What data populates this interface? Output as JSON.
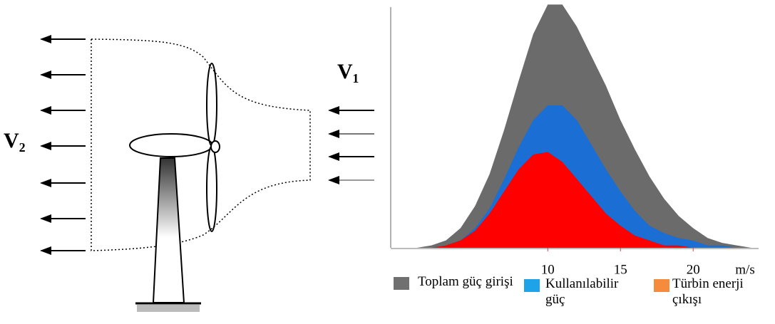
{
  "diagram": {
    "inflow_label": "V₁",
    "outflow_label": "V₂"
  },
  "chart_data": {
    "type": "area",
    "x": [
      0,
      1,
      2,
      3,
      4,
      5,
      6,
      7,
      8,
      9,
      10,
      11,
      12,
      13,
      14,
      15,
      16,
      17,
      18,
      19,
      20,
      21,
      22,
      23,
      24
    ],
    "series": [
      {
        "name": "Toplam güç girişi",
        "color": "#6b6b6b",
        "legend_color": "#707070",
        "values": [
          0,
          0,
          1,
          3,
          8,
          17,
          30,
          48,
          68,
          87,
          99,
          99,
          90,
          78,
          66,
          52,
          40,
          29,
          20,
          13,
          8,
          4,
          2,
          1,
          0
        ]
      },
      {
        "name": "Kullanılabilir güç",
        "color": "#1b6fd4",
        "legend_color": "#1ea2e8",
        "values": [
          0,
          0,
          0,
          1,
          3,
          8,
          16,
          28,
          41,
          52,
          58,
          58,
          52,
          42,
          32,
          23,
          15,
          9,
          6,
          4,
          3,
          1,
          1,
          0,
          0
        ]
      },
      {
        "name": "Türbin enerji çıkışı",
        "color": "#ff0000",
        "legend_color": "#f58b3c",
        "values": [
          0,
          0,
          0,
          1,
          3,
          7,
          14,
          23,
          32,
          38,
          39,
          35,
          28,
          21,
          14,
          9,
          5,
          3,
          1,
          1,
          0,
          0,
          0,
          0,
          0
        ]
      }
    ],
    "xlim": [
      -0.8,
      24.5
    ],
    "ylim": [
      0,
      100
    ],
    "xticks": [
      10,
      15,
      20
    ],
    "xlabel": "m/s"
  }
}
